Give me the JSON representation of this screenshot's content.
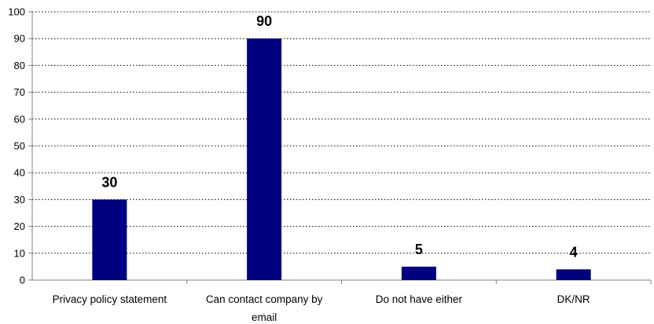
{
  "chart_data": {
    "type": "bar",
    "categories": [
      [
        "Privacy policy statement"
      ],
      [
        "Can contact company by",
        "email"
      ],
      [
        "Do not have either"
      ],
      [
        "DK/NR"
      ]
    ],
    "values": [
      30,
      90,
      5,
      4
    ],
    "data_labels": [
      "30",
      "90",
      "5",
      "4"
    ],
    "y_ticks": [
      "0",
      "10",
      "20",
      "30",
      "40",
      "50",
      "60",
      "70",
      "80",
      "90",
      "100"
    ],
    "ylim": [
      0,
      100
    ],
    "ystep": 10,
    "title": "",
    "xlabel": "",
    "ylabel": "",
    "grid": true,
    "legend": "none",
    "bar_color": "#000080",
    "axis_color": "#808080",
    "grid_color": "#000000"
  }
}
